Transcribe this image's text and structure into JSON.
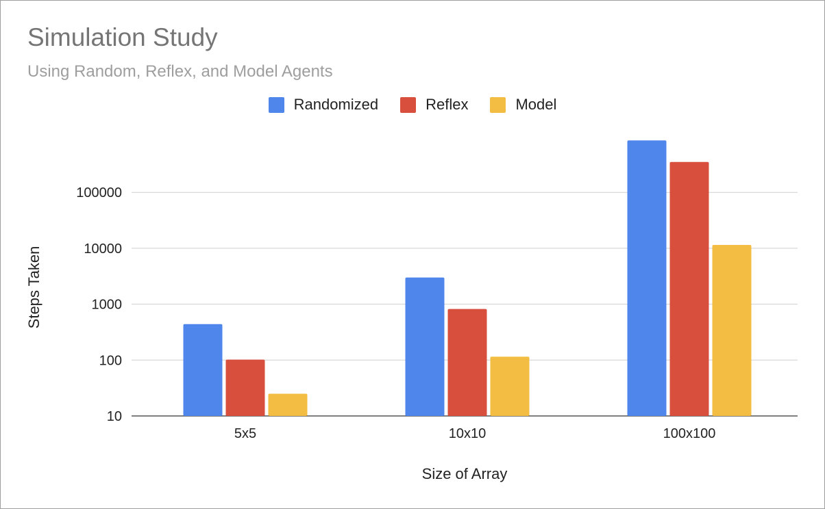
{
  "chart_data": {
    "type": "bar",
    "title": "Simulation Study",
    "subtitle": "Using Random, Reflex, and Model Agents",
    "xlabel": "Size of Array",
    "ylabel": "Steps Taken",
    "categories": [
      "5x5",
      "10x10",
      "100x100"
    ],
    "y_scale": "log",
    "ylim": [
      10,
      1000000
    ],
    "y_ticks": [
      "10",
      "100",
      "1000",
      "10000",
      "100000"
    ],
    "legend_position": "top",
    "grid": true,
    "series": [
      {
        "name": "Randomized",
        "color": "#4f86ec",
        "values": [
          440,
          3000,
          850000
        ]
      },
      {
        "name": "Reflex",
        "color": "#d94f3e",
        "values": [
          102,
          820,
          350000
        ]
      },
      {
        "name": "Model",
        "color": "#f2bd42",
        "values": [
          25,
          115,
          11500
        ]
      }
    ]
  }
}
